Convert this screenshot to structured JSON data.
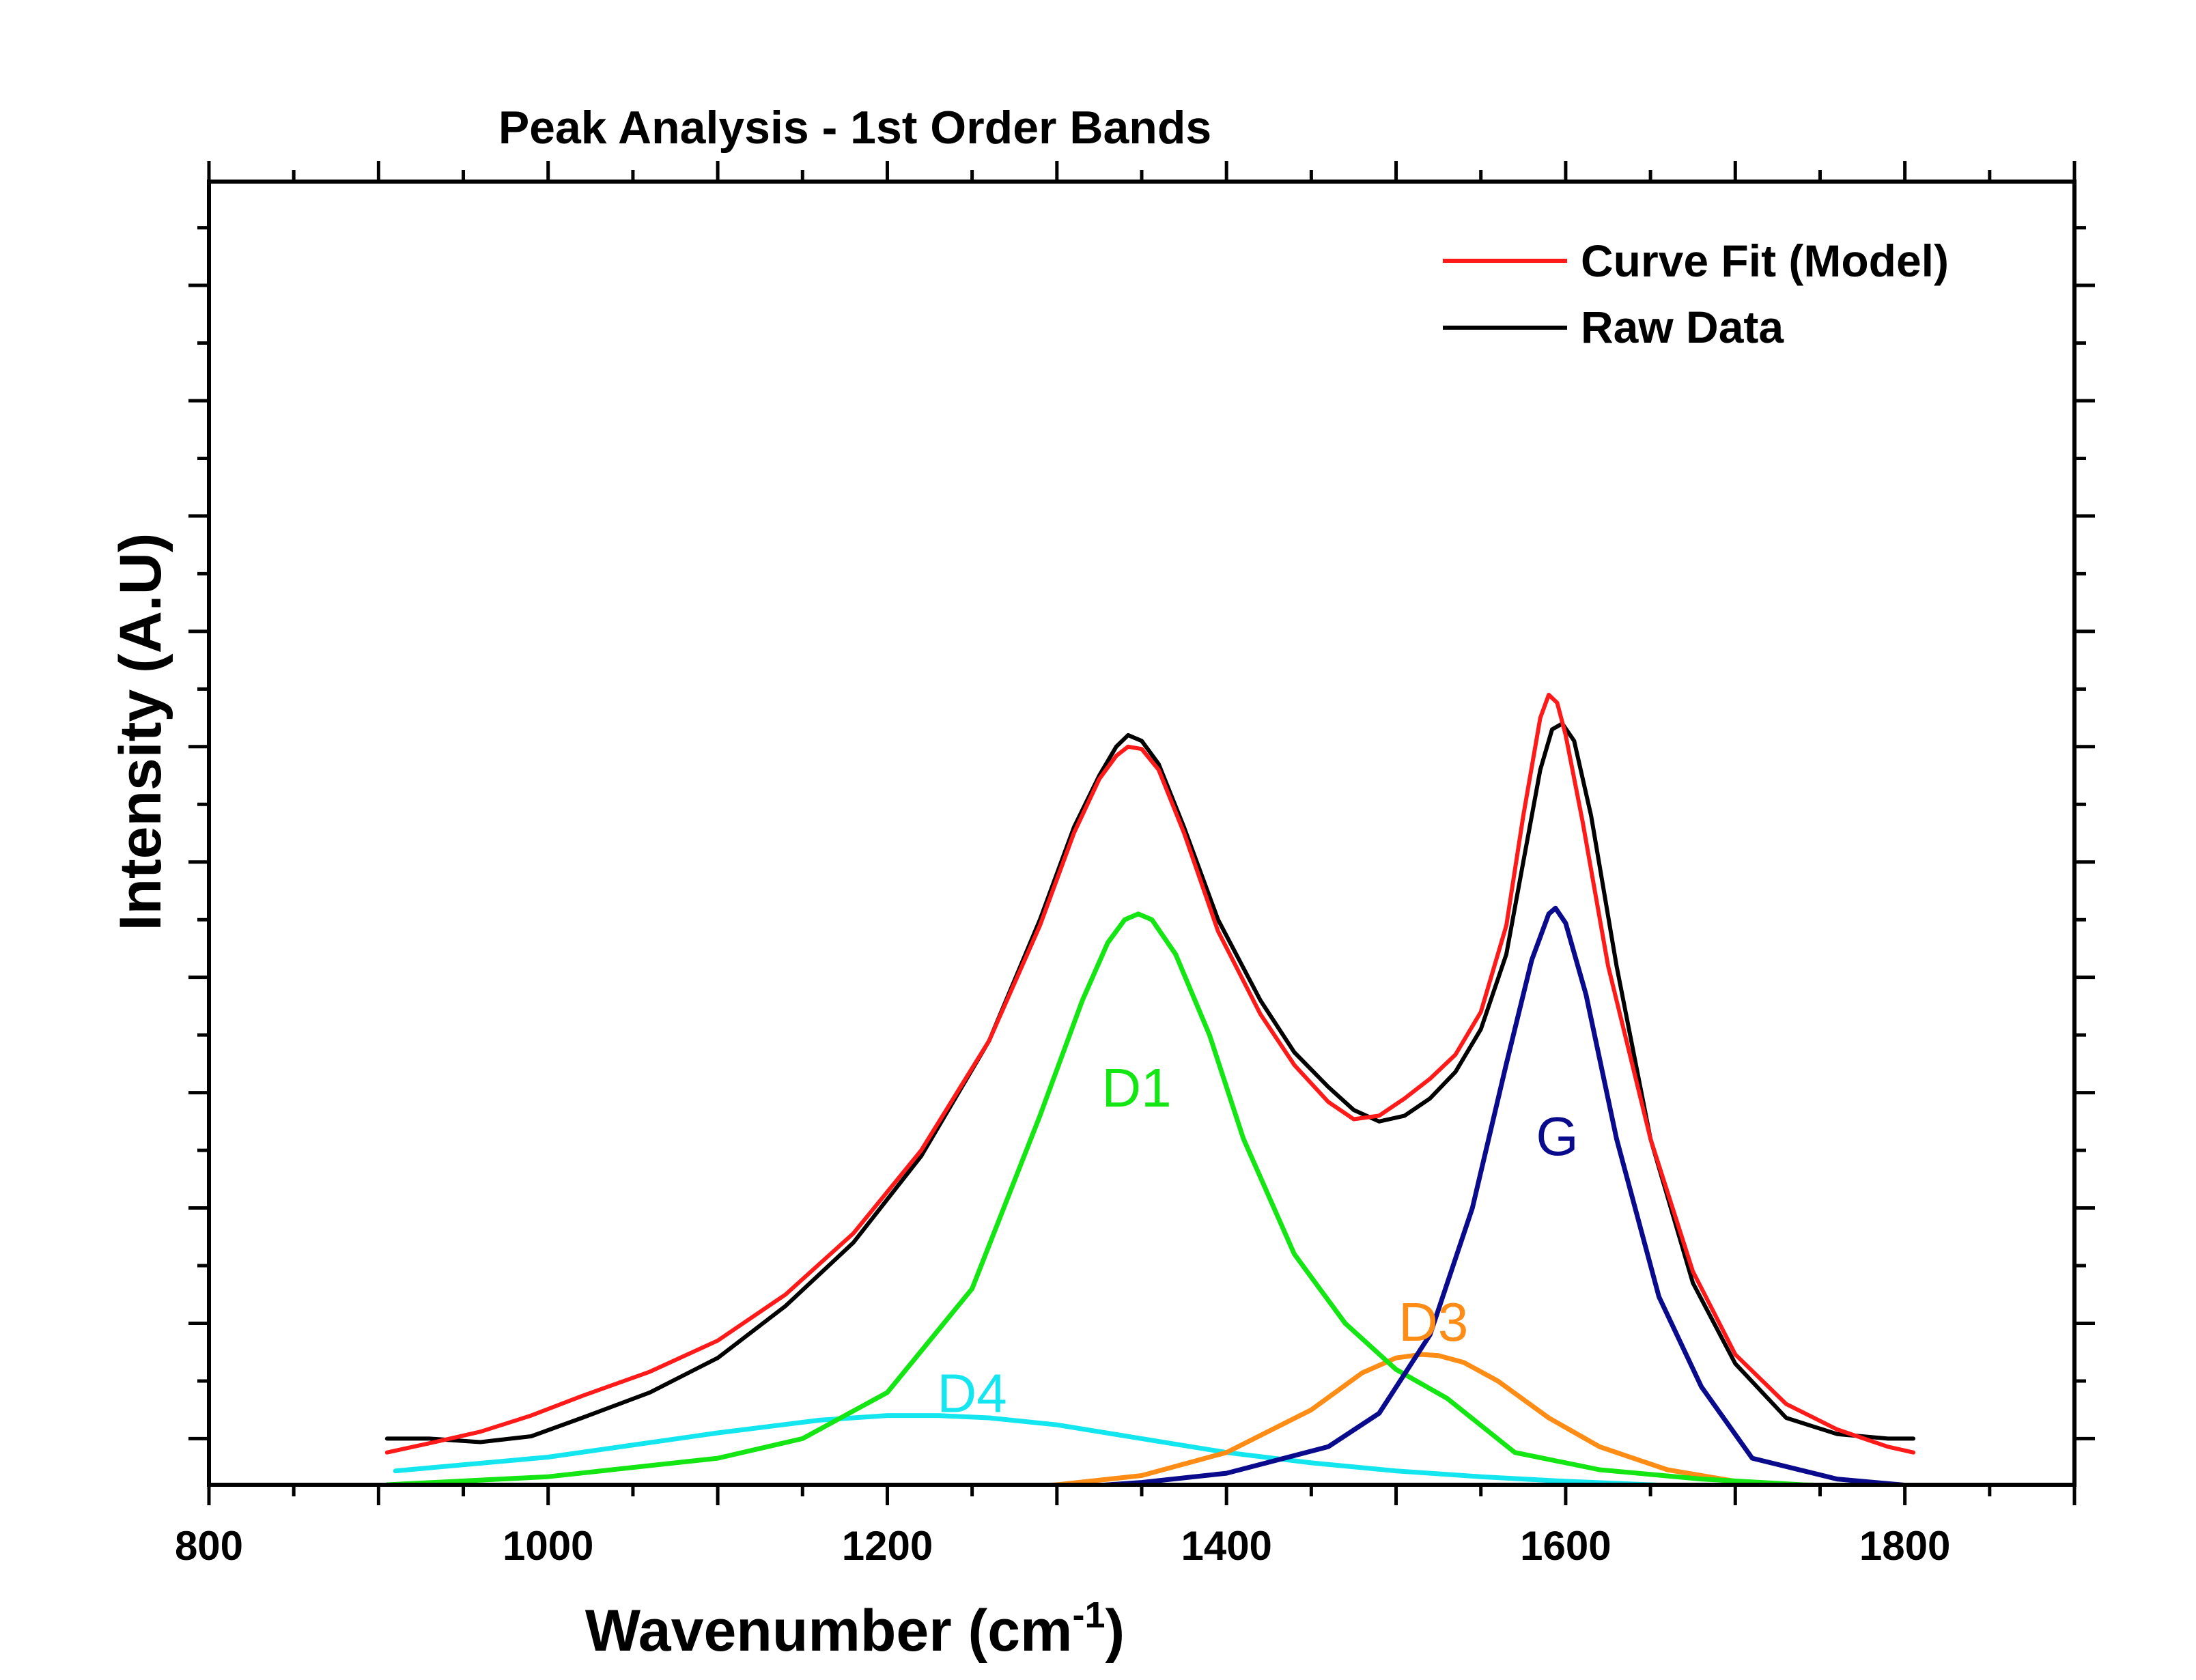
{
  "chart_data": {
    "type": "line",
    "title": "Peak Analysis - 1st Order Bands",
    "xlabel_main": "Wavenumber (cm",
    "xlabel_sup": "-1",
    "xlabel_close": ")",
    "ylabel": "Intensity (A.U)",
    "xlim": [
      800,
      1900
    ],
    "ylim": [
      -0.04,
      1.09
    ],
    "x_ticks": [
      {
        "value": 800,
        "label": "800"
      },
      {
        "value": 1000,
        "label": "1000"
      },
      {
        "value": 1200,
        "label": "1200"
      },
      {
        "value": 1400,
        "label": "1400"
      },
      {
        "value": 1600,
        "label": "1600"
      },
      {
        "value": 1800,
        "label": "1800"
      }
    ],
    "y_tick_labels_visible": false,
    "grid": false,
    "legend_position": "top-right",
    "legend": [
      {
        "label": "Curve Fit (Model)",
        "color": "#ff1a1a"
      },
      {
        "label": "Raw Data",
        "color": "#000000"
      }
    ],
    "series": [
      {
        "key": "raw",
        "name": "Raw Data",
        "color": "#000000",
        "x": [
          905,
          930,
          960,
          990,
          1020,
          1060,
          1100,
          1140,
          1180,
          1220,
          1260,
          1290,
          1310,
          1325,
          1335,
          1342,
          1350,
          1360,
          1375,
          1395,
          1420,
          1440,
          1460,
          1475,
          1490,
          1505,
          1520,
          1535,
          1550,
          1565,
          1575,
          1585,
          1592,
          1598,
          1605,
          1615,
          1630,
          1650,
          1675,
          1700,
          1730,
          1760,
          1790,
          1805
        ],
        "y": [
          0.0,
          0.0,
          -0.003,
          0.002,
          0.018,
          0.04,
          0.07,
          0.115,
          0.17,
          0.245,
          0.345,
          0.45,
          0.53,
          0.575,
          0.6,
          0.61,
          0.605,
          0.585,
          0.53,
          0.45,
          0.38,
          0.335,
          0.305,
          0.285,
          0.275,
          0.28,
          0.295,
          0.318,
          0.355,
          0.42,
          0.5,
          0.58,
          0.615,
          0.62,
          0.605,
          0.54,
          0.41,
          0.26,
          0.135,
          0.065,
          0.018,
          0.004,
          0.0,
          0.0
        ]
      },
      {
        "key": "fit",
        "name": "Curve Fit (Model)",
        "color": "#ff1a1a",
        "x": [
          905,
          930,
          960,
          990,
          1020,
          1060,
          1100,
          1140,
          1180,
          1220,
          1260,
          1290,
          1310,
          1325,
          1335,
          1342,
          1350,
          1360,
          1375,
          1395,
          1420,
          1440,
          1460,
          1475,
          1490,
          1505,
          1520,
          1535,
          1550,
          1565,
          1575,
          1585,
          1590,
          1595,
          1600,
          1610,
          1625,
          1650,
          1675,
          1700,
          1730,
          1760,
          1790,
          1805
        ],
        "y": [
          -0.012,
          -0.004,
          0.006,
          0.02,
          0.037,
          0.058,
          0.085,
          0.125,
          0.178,
          0.25,
          0.345,
          0.445,
          0.525,
          0.572,
          0.592,
          0.6,
          0.598,
          0.58,
          0.525,
          0.44,
          0.368,
          0.324,
          0.292,
          0.277,
          0.28,
          0.295,
          0.312,
          0.333,
          0.37,
          0.445,
          0.54,
          0.625,
          0.645,
          0.638,
          0.61,
          0.535,
          0.41,
          0.26,
          0.145,
          0.073,
          0.03,
          0.008,
          -0.007,
          -0.012
        ]
      },
      {
        "key": "D1",
        "name": "D1",
        "color": "#14e614",
        "x": [
          905,
          1000,
          1100,
          1150,
          1200,
          1250,
          1290,
          1315,
          1330,
          1340,
          1348,
          1356,
          1370,
          1390,
          1410,
          1440,
          1470,
          1500,
          1530,
          1570,
          1620,
          1680,
          1740,
          1805
        ],
        "y": [
          -0.04,
          -0.033,
          -0.017,
          0.0,
          0.04,
          0.13,
          0.28,
          0.38,
          0.43,
          0.45,
          0.455,
          0.45,
          0.42,
          0.35,
          0.26,
          0.16,
          0.1,
          0.06,
          0.035,
          -0.012,
          -0.027,
          -0.035,
          -0.04,
          -0.043
        ]
      },
      {
        "key": "D3",
        "name": "D3",
        "color": "#ff8c14",
        "x": [
          905,
          1000,
          1100,
          1200,
          1250,
          1300,
          1350,
          1400,
          1450,
          1480,
          1500,
          1515,
          1525,
          1540,
          1560,
          1590,
          1620,
          1660,
          1700,
          1750,
          1805
        ],
        "y": [
          -0.05,
          -0.05,
          -0.049,
          -0.046,
          -0.044,
          -0.04,
          -0.032,
          -0.012,
          0.025,
          0.057,
          0.07,
          0.073,
          0.072,
          0.066,
          0.05,
          0.018,
          -0.007,
          -0.027,
          -0.037,
          -0.043,
          -0.045
        ]
      },
      {
        "key": "D4",
        "name": "D4",
        "color": "#14e6f0",
        "x": [
          910,
          1000,
          1100,
          1160,
          1200,
          1230,
          1260,
          1300,
          1350,
          1400,
          1450,
          1500,
          1550,
          1600,
          1650,
          1700,
          1750,
          1805
        ],
        "y": [
          -0.028,
          -0.016,
          0.005,
          0.016,
          0.02,
          0.02,
          0.018,
          0.012,
          0.0,
          -0.012,
          -0.021,
          -0.028,
          -0.033,
          -0.037,
          -0.04,
          -0.043,
          -0.045,
          -0.047
        ]
      },
      {
        "key": "G",
        "name": "G",
        "color": "#0a0a8c",
        "x": [
          905,
          1000,
          1100,
          1200,
          1300,
          1350,
          1400,
          1460,
          1490,
          1520,
          1545,
          1565,
          1580,
          1590,
          1594,
          1600,
          1612,
          1630,
          1655,
          1680,
          1710,
          1760,
          1805
        ],
        "y": [
          -0.05,
          -0.049,
          -0.048,
          -0.047,
          -0.043,
          -0.038,
          -0.03,
          -0.007,
          0.022,
          0.09,
          0.2,
          0.325,
          0.415,
          0.455,
          0.46,
          0.447,
          0.385,
          0.26,
          0.123,
          0.045,
          -0.017,
          -0.035,
          -0.041
        ]
      }
    ],
    "band_labels": [
      {
        "text": "D1",
        "x": 1347,
        "y": 0.288,
        "color": "#14e614"
      },
      {
        "text": "G",
        "x": 1595,
        "y": 0.246,
        "color": "#0a0a8c"
      },
      {
        "text": "D3",
        "x": 1522,
        "y": 0.085,
        "color": "#ff8c14"
      },
      {
        "text": "D4",
        "x": 1250,
        "y": 0.023,
        "color": "#14e6f0"
      }
    ]
  }
}
